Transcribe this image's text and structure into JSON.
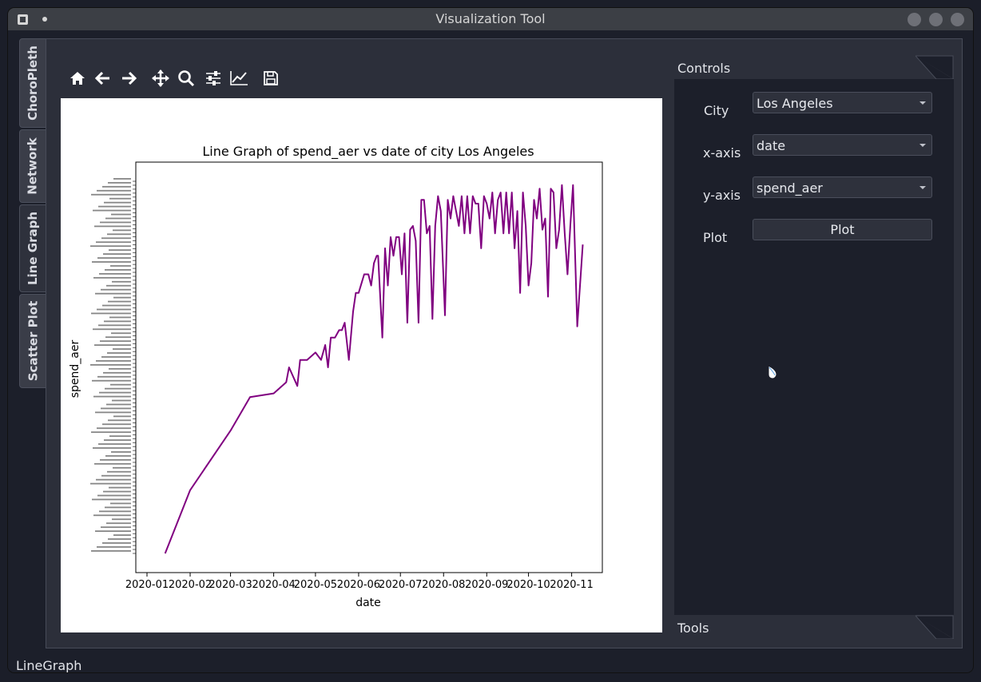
{
  "window": {
    "title": "Visualization Tool"
  },
  "tabs": [
    {
      "label": "ChoroPleth",
      "active": false
    },
    {
      "label": "Network",
      "active": false
    },
    {
      "label": "Line Graph",
      "active": true
    },
    {
      "label": "Scatter Plot",
      "active": false
    }
  ],
  "toolbar": {
    "icons": [
      "home-icon",
      "back-arrow-icon",
      "forward-arrow-icon",
      "pan-icon",
      "zoom-icon",
      "configure-subplots-icon",
      "edit-axis-icon",
      "save-icon"
    ]
  },
  "controls": {
    "title": "Controls",
    "city_label": "City",
    "city_value": "Los Angeles",
    "xaxis_label": "x-axis",
    "xaxis_value": "date",
    "yaxis_label": "y-axis",
    "yaxis_value": "spend_aer",
    "plot_label": "Plot",
    "plot_button": "Plot"
  },
  "tools_dock": {
    "title": "Tools"
  },
  "status": {
    "text": "LineGraph"
  },
  "colors": {
    "line": "#800080",
    "accent": "#2c2f3a"
  },
  "chart_data": {
    "type": "line",
    "title": "Line Graph of spend_aer vs date of city Los Angeles",
    "xlabel": "date",
    "ylabel": "spend_aer",
    "x_ticks": [
      "2020-01",
      "2020-02",
      "2020-03",
      "2020-04",
      "2020-05",
      "2020-06",
      "2020-07",
      "2020-08",
      "2020-09",
      "2020-10",
      "2020-11"
    ],
    "xlim": [
      "2020-01-01",
      "2020-11-15"
    ],
    "ylim": [
      0,
      100
    ],
    "grid": false,
    "y_tick_labels_note": "hundreds of overlapping categorical string tick labels, illegible",
    "series": [
      {
        "color": "#800080",
        "x": [
          "2020-01-14",
          "2020-02-01",
          "2020-03-01",
          "2020-03-15",
          "2020-04-01",
          "2020-04-10",
          "2020-04-12",
          "2020-04-18",
          "2020-04-20",
          "2020-04-25",
          "2020-05-01",
          "2020-05-05",
          "2020-05-08",
          "2020-05-10",
          "2020-05-12",
          "2020-05-15",
          "2020-05-18",
          "2020-05-20",
          "2020-05-22",
          "2020-05-25",
          "2020-05-28",
          "2020-05-30",
          "2020-06-01",
          "2020-06-05",
          "2020-06-08",
          "2020-06-10",
          "2020-06-12",
          "2020-06-14",
          "2020-06-15",
          "2020-06-18",
          "2020-06-20",
          "2020-06-22",
          "2020-06-24",
          "2020-06-26",
          "2020-06-28",
          "2020-06-30",
          "2020-07-02",
          "2020-07-04",
          "2020-07-06",
          "2020-07-08",
          "2020-07-10",
          "2020-07-12",
          "2020-07-14",
          "2020-07-16",
          "2020-07-18",
          "2020-07-20",
          "2020-07-22",
          "2020-07-24",
          "2020-07-26",
          "2020-07-28",
          "2020-07-30",
          "2020-08-02",
          "2020-08-04",
          "2020-08-06",
          "2020-08-08",
          "2020-08-10",
          "2020-08-12",
          "2020-08-14",
          "2020-08-16",
          "2020-08-18",
          "2020-08-20",
          "2020-08-22",
          "2020-08-24",
          "2020-08-26",
          "2020-08-28",
          "2020-08-30",
          "2020-09-01",
          "2020-09-03",
          "2020-09-05",
          "2020-09-07",
          "2020-09-09",
          "2020-09-11",
          "2020-09-13",
          "2020-09-15",
          "2020-09-17",
          "2020-09-19",
          "2020-09-21",
          "2020-09-23",
          "2020-09-25",
          "2020-09-27",
          "2020-09-29",
          "2020-10-01",
          "2020-10-03",
          "2020-10-05",
          "2020-10-07",
          "2020-10-09",
          "2020-10-11",
          "2020-10-13",
          "2020-10-15",
          "2020-10-17",
          "2020-10-19",
          "2020-10-21",
          "2020-10-23",
          "2020-10-25",
          "2020-10-27",
          "2020-10-29",
          "2020-10-31",
          "2020-11-02",
          "2020-11-05",
          "2020-11-09"
        ],
        "y": [
          0,
          17,
          33,
          42,
          43,
          46,
          50,
          45,
          52,
          52,
          54,
          52,
          56,
          50,
          58,
          58,
          60,
          60,
          62,
          52,
          65,
          70,
          70,
          75,
          75,
          72,
          78,
          80,
          80,
          58,
          82,
          72,
          85,
          80,
          85,
          85,
          75,
          86,
          62,
          87,
          88,
          84,
          62,
          95,
          95,
          86,
          88,
          63,
          88,
          96,
          92,
          64,
          95,
          90,
          96,
          92,
          88,
          96,
          86,
          96,
          86,
          96,
          94,
          94,
          82,
          96,
          94,
          90,
          97,
          86,
          95,
          97,
          86,
          97,
          86,
          97,
          82,
          92,
          70,
          97,
          88,
          72,
          78,
          95,
          90,
          98,
          87,
          90,
          69,
          98,
          97,
          82,
          87,
          99,
          86,
          75,
          88,
          99,
          61,
          83
        ]
      }
    ]
  }
}
